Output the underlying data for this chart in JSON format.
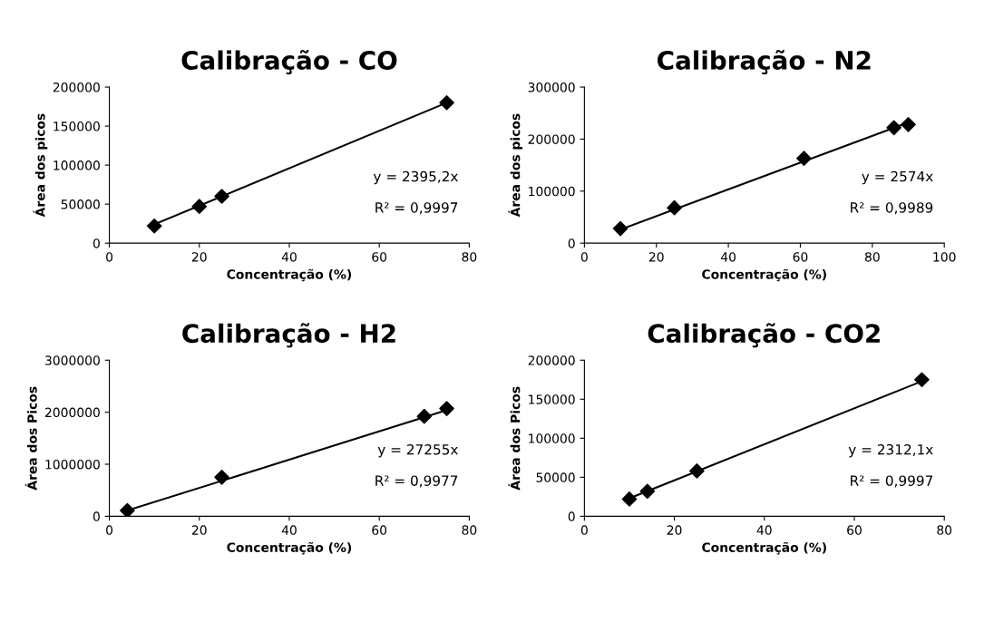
{
  "chart_data": [
    {
      "type": "scatter",
      "title": "Calibração - CO",
      "xlabel": "Concentração (%)",
      "ylabel": "Área dos picos",
      "xlim": [
        0,
        80
      ],
      "xticks": [
        0,
        20,
        40,
        60,
        80
      ],
      "ylim": [
        0,
        200000
      ],
      "yticks": [
        0,
        50000,
        100000,
        150000,
        200000
      ],
      "grid": false,
      "legend": false,
      "series": [
        {
          "color": "#000000",
          "marker": "diamond",
          "x": [
            10,
            20,
            25,
            75
          ],
          "values": [
            22000,
            47000,
            60000,
            180000
          ]
        },
        {
          "type": "line",
          "marker": "none",
          "color": "#000000",
          "x": [
            10,
            75
          ],
          "values": [
            24000,
            180000
          ]
        }
      ],
      "annotations": [
        "y = 2395,2x",
        "R² = 0,9997"
      ]
    },
    {
      "type": "scatter",
      "title": "Calibração - N2",
      "xlabel": "Concentração (%)",
      "ylabel": "Área dos picos",
      "xlim": [
        0,
        100
      ],
      "xticks": [
        0,
        20,
        40,
        60,
        80,
        100
      ],
      "ylim": [
        0,
        300000
      ],
      "yticks": [
        0,
        100000,
        200000,
        300000
      ],
      "grid": false,
      "legend": false,
      "series": [
        {
          "color": "#000000",
          "marker": "diamond",
          "x": [
            10,
            25,
            61,
            86,
            90
          ],
          "values": [
            28000,
            68000,
            163000,
            222000,
            228000
          ]
        },
        {
          "type": "line",
          "marker": "none",
          "color": "#000000",
          "x": [
            10,
            90
          ],
          "values": [
            26000,
            232000
          ]
        }
      ],
      "annotations": [
        "y = 2574x",
        "R² = 0,9989"
      ]
    },
    {
      "type": "scatter",
      "title": "Calibração - H2",
      "xlabel": "Concentração (%)",
      "ylabel": "Área dos Picos",
      "xlim": [
        0,
        80
      ],
      "xticks": [
        0,
        20,
        40,
        60,
        80
      ],
      "ylim": [
        0,
        3000000
      ],
      "yticks": [
        0,
        1000000,
        2000000,
        3000000
      ],
      "grid": false,
      "legend": false,
      "series": [
        {
          "color": "#000000",
          "marker": "diamond",
          "x": [
            4,
            25,
            70,
            75
          ],
          "values": [
            110000,
            750000,
            1920000,
            2070000
          ]
        },
        {
          "type": "line",
          "marker": "none",
          "color": "#000000",
          "x": [
            4,
            75
          ],
          "values": [
            110000,
            2040000
          ]
        }
      ],
      "annotations": [
        "y = 27255x",
        "R² = 0,9977"
      ]
    },
    {
      "type": "scatter",
      "title": "Calibração - CO2",
      "xlabel": "Concentração (%)",
      "ylabel": "Área dos Picos",
      "xlim": [
        0,
        80
      ],
      "xticks": [
        0,
        20,
        40,
        60,
        80
      ],
      "ylim": [
        0,
        200000
      ],
      "yticks": [
        0,
        50000,
        100000,
        150000,
        200000
      ],
      "grid": false,
      "legend": false,
      "series": [
        {
          "color": "#000000",
          "marker": "diamond",
          "x": [
            10,
            14,
            25,
            75
          ],
          "values": [
            22000,
            32000,
            58000,
            175000
          ]
        },
        {
          "type": "line",
          "marker": "none",
          "color": "#000000",
          "x": [
            10,
            75
          ],
          "values": [
            23000,
            173000
          ]
        }
      ],
      "annotations": [
        "y = 2312,1x",
        "R² = 0,9997"
      ]
    }
  ]
}
